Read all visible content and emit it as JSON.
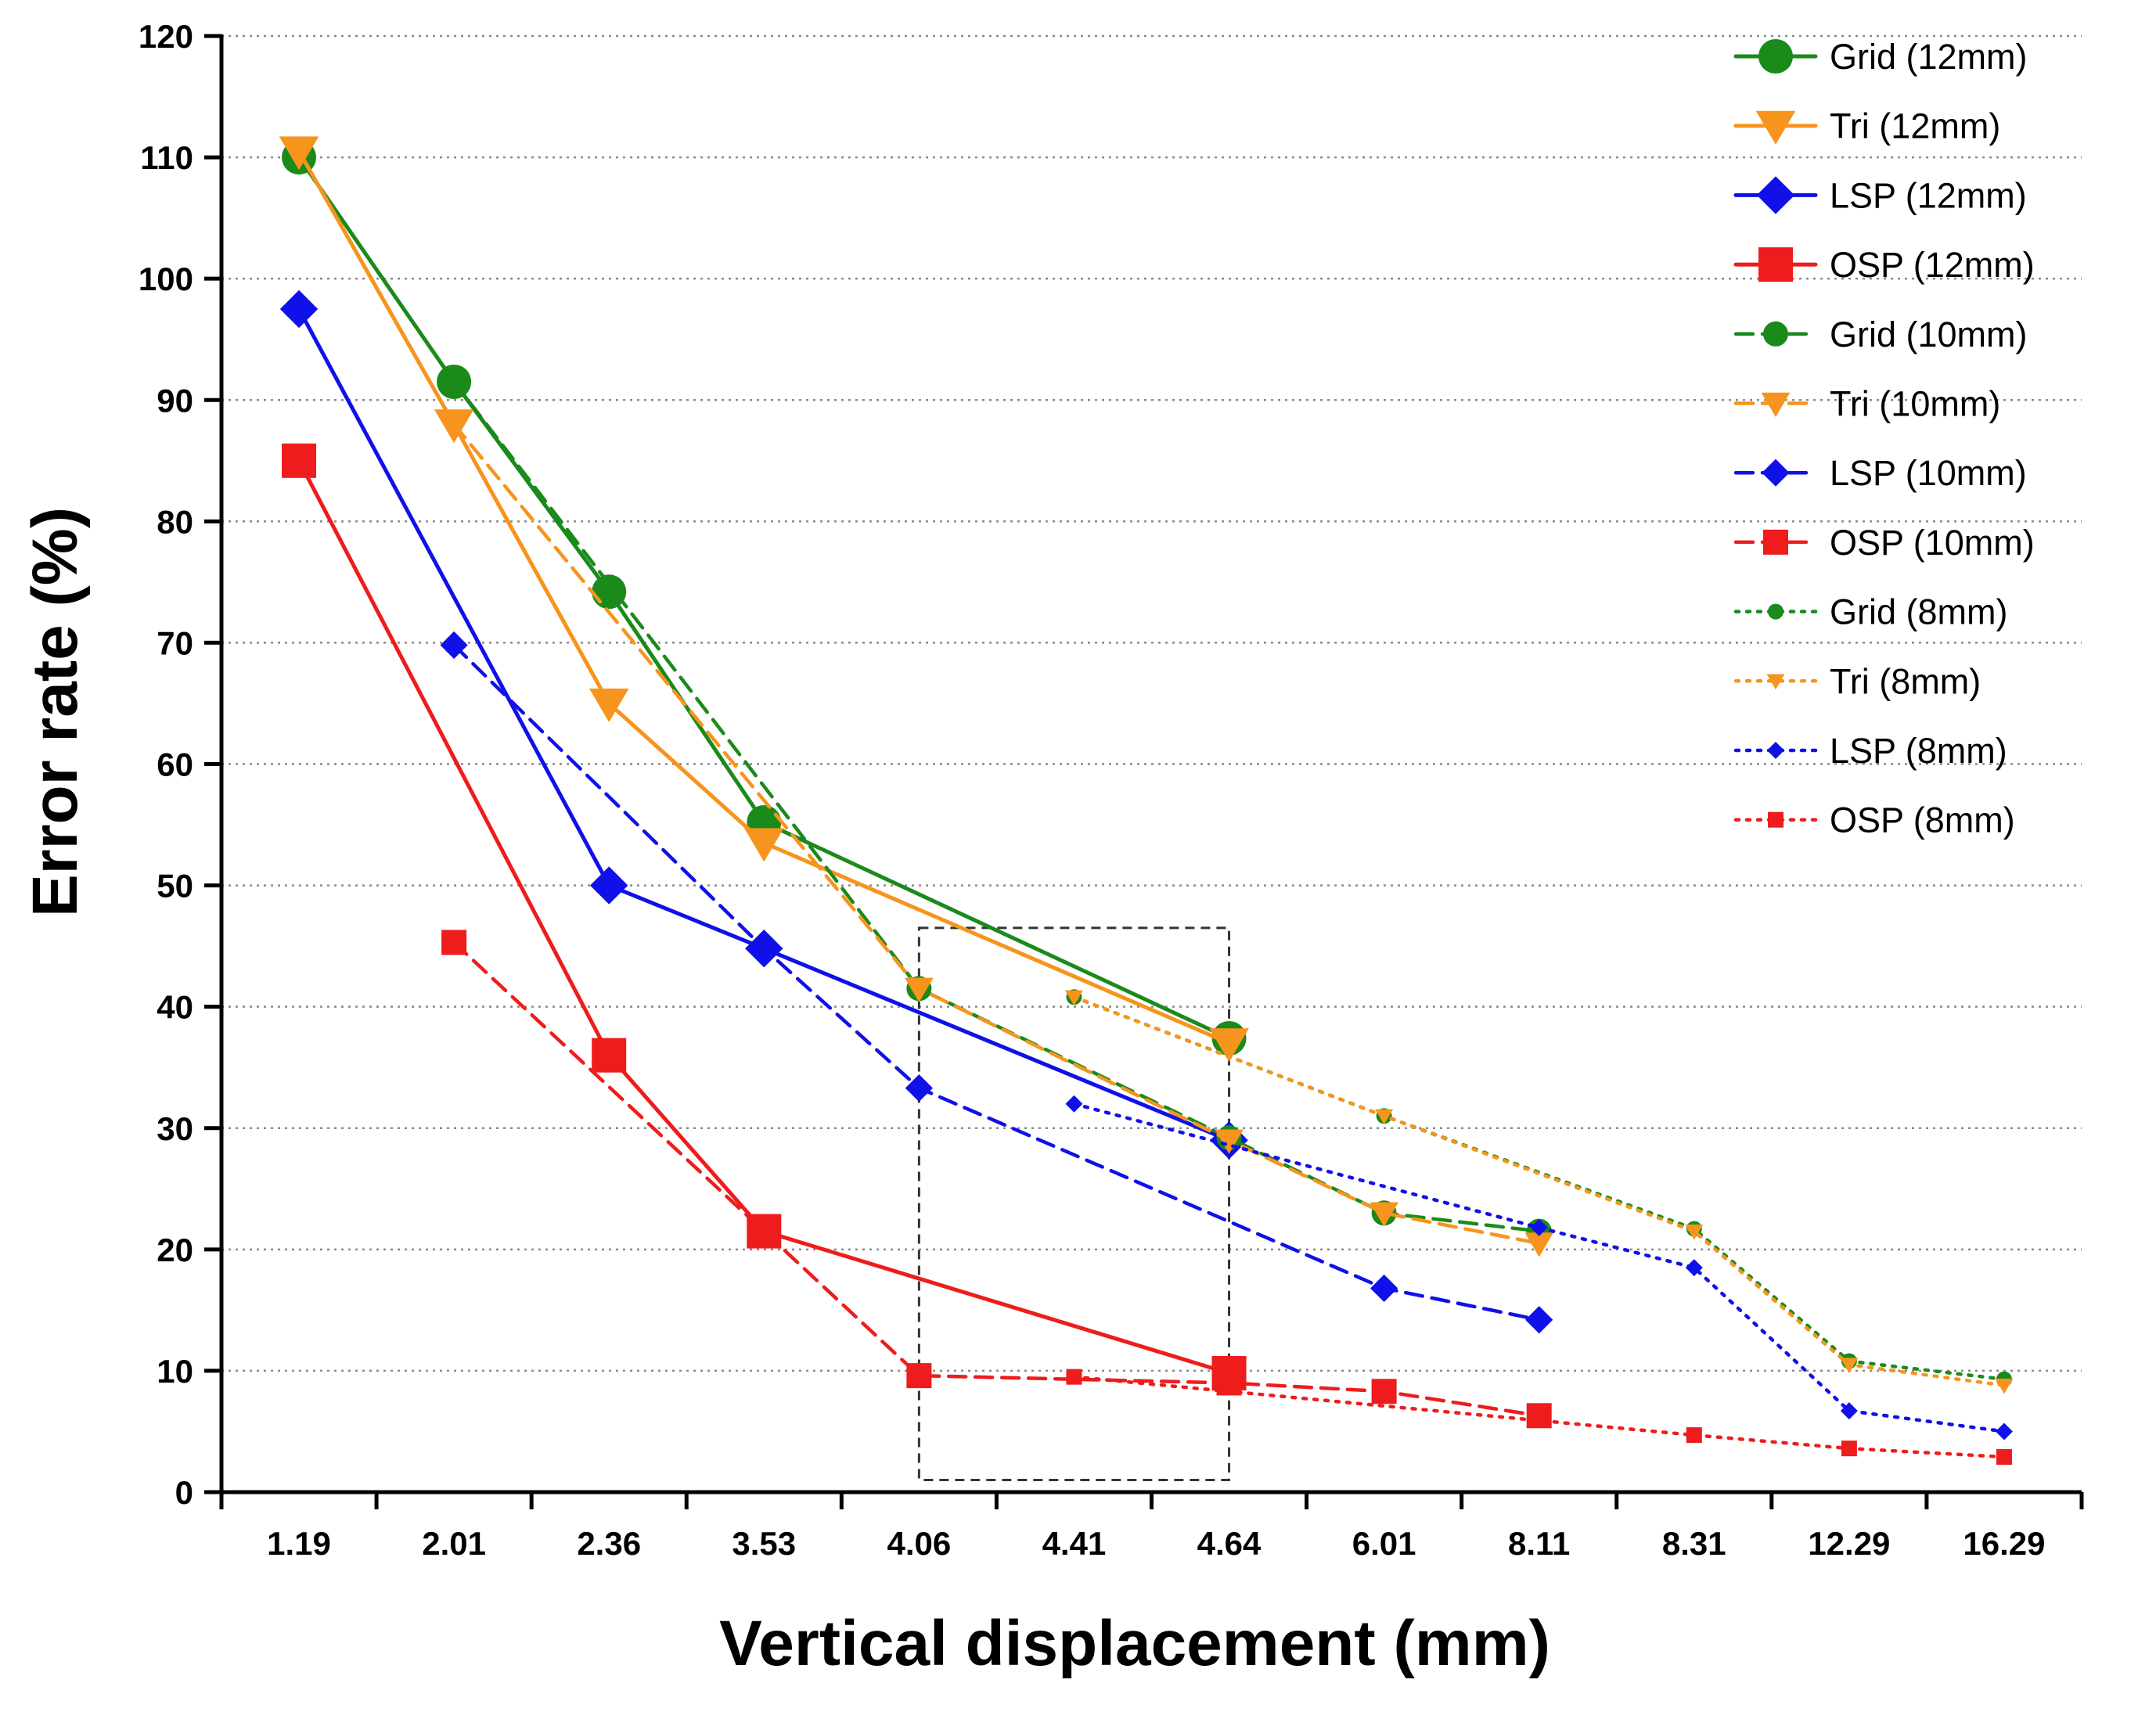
{
  "chart_data": {
    "type": "line",
    "title": "",
    "xlabel": "Vertical displacement (mm)",
    "ylabel": "Error rate (%)",
    "x_categories": [
      "1.19",
      "2.01",
      "2.36",
      "3.53",
      "4.06",
      "4.41",
      "4.64",
      "6.01",
      "8.11",
      "8.31",
      "12.29",
      "16.29"
    ],
    "ylim": [
      0,
      120
    ],
    "yticks": [
      0,
      10,
      20,
      30,
      40,
      50,
      60,
      70,
      80,
      90,
      100,
      110,
      120
    ],
    "grid": "horizontal dotted",
    "legend_position": "top-right",
    "highlight_box": {
      "x_from": "4.06",
      "x_to": "4.64",
      "y_from": 1,
      "y_to": 46.5
    },
    "series": [
      {
        "name": "Grid (12mm)",
        "color": "#1a8a1a",
        "line": "solid",
        "marker": "circle",
        "size": "large",
        "points": [
          [
            "1.19",
            110
          ],
          [
            "2.01",
            91.5
          ],
          [
            "2.36",
            74.2
          ],
          [
            "3.53",
            55.2
          ],
          [
            "4.64",
            37.4
          ]
        ]
      },
      {
        "name": "Tri   (12mm)",
        "color": "#f7941d",
        "line": "solid",
        "marker": "triangle-down",
        "size": "large",
        "points": [
          [
            "1.19",
            110.5
          ],
          [
            "2.01",
            88
          ],
          [
            "2.36",
            65
          ],
          [
            "3.53",
            53.5
          ],
          [
            "4.64",
            37
          ]
        ]
      },
      {
        "name": "LSP (12mm)",
        "color": "#1010e8",
        "line": "solid",
        "marker": "diamond",
        "size": "large",
        "points": [
          [
            "1.19",
            97.5
          ],
          [
            "2.36",
            50
          ],
          [
            "3.53",
            44.8
          ],
          [
            "4.64",
            29
          ]
        ]
      },
      {
        "name": "OSP (12mm)",
        "color": "#ee1c1c",
        "line": "solid",
        "marker": "square",
        "size": "large",
        "points": [
          [
            "1.19",
            85
          ],
          [
            "2.36",
            36
          ],
          [
            "3.53",
            21.5
          ],
          [
            "4.64",
            9.8
          ]
        ]
      },
      {
        "name": "Grid (10mm)",
        "color": "#1a8a1a",
        "line": "dashed",
        "marker": "circle",
        "size": "medium",
        "points": [
          [
            "2.01",
            91.5
          ],
          [
            "4.06",
            41.5
          ],
          [
            "4.64",
            29.2
          ],
          [
            "6.01",
            23
          ],
          [
            "8.11",
            21.5
          ]
        ]
      },
      {
        "name": "Tri    (10mm)",
        "color": "#f7941d",
        "line": "dashed",
        "marker": "triangle-down",
        "size": "medium",
        "points": [
          [
            "2.01",
            88
          ],
          [
            "4.06",
            41.5
          ],
          [
            "4.64",
            29
          ],
          [
            "6.01",
            23
          ],
          [
            "8.11",
            20.5
          ]
        ]
      },
      {
        "name": "LSP (10mm)",
        "color": "#1010e8",
        "line": "dashed",
        "marker": "diamond",
        "size": "medium",
        "points": [
          [
            "2.01",
            69.8
          ],
          [
            "3.53",
            44.8
          ],
          [
            "4.06",
            33.3
          ],
          [
            "6.01",
            16.8
          ],
          [
            "8.11",
            14.2
          ]
        ]
      },
      {
        "name": "OSP (10mm)",
        "color": "#ee1c1c",
        "line": "dashed",
        "marker": "square",
        "size": "medium",
        "points": [
          [
            "2.01",
            45.3
          ],
          [
            "3.53",
            21.5
          ],
          [
            "4.06",
            9.6
          ],
          [
            "4.64",
            9
          ],
          [
            "6.01",
            8.3
          ],
          [
            "8.11",
            6.3
          ]
        ]
      },
      {
        "name": "Grid (8mm)",
        "color": "#1a8a1a",
        "line": "dotted",
        "marker": "circle",
        "size": "small",
        "points": [
          [
            "4.41",
            40.8
          ],
          [
            "6.01",
            31
          ],
          [
            "8.31",
            21.7
          ],
          [
            "12.29",
            10.8
          ],
          [
            "16.29",
            9.3
          ]
        ]
      },
      {
        "name": "Tri   (8mm)",
        "color": "#f7941d",
        "line": "dotted",
        "marker": "triangle-down",
        "size": "small",
        "points": [
          [
            "4.41",
            40.8
          ],
          [
            "6.01",
            31
          ],
          [
            "8.31",
            21.5
          ],
          [
            "12.29",
            10.5
          ],
          [
            "16.29",
            8.8
          ]
        ]
      },
      {
        "name": "LSP (8mm)",
        "color": "#1010e8",
        "line": "dotted",
        "marker": "diamond",
        "size": "small",
        "points": [
          [
            "4.41",
            32
          ],
          [
            "8.11",
            21.8
          ],
          [
            "8.31",
            18.5
          ],
          [
            "12.29",
            6.7
          ],
          [
            "16.29",
            5
          ]
        ]
      },
      {
        "name": "OSP (8mm)",
        "color": "#ee1c1c",
        "line": "dotted",
        "marker": "square",
        "size": "small",
        "points": [
          [
            "4.41",
            9.5
          ],
          [
            "8.31",
            4.7
          ],
          [
            "12.29",
            3.6
          ],
          [
            "16.29",
            2.9
          ]
        ]
      }
    ]
  }
}
